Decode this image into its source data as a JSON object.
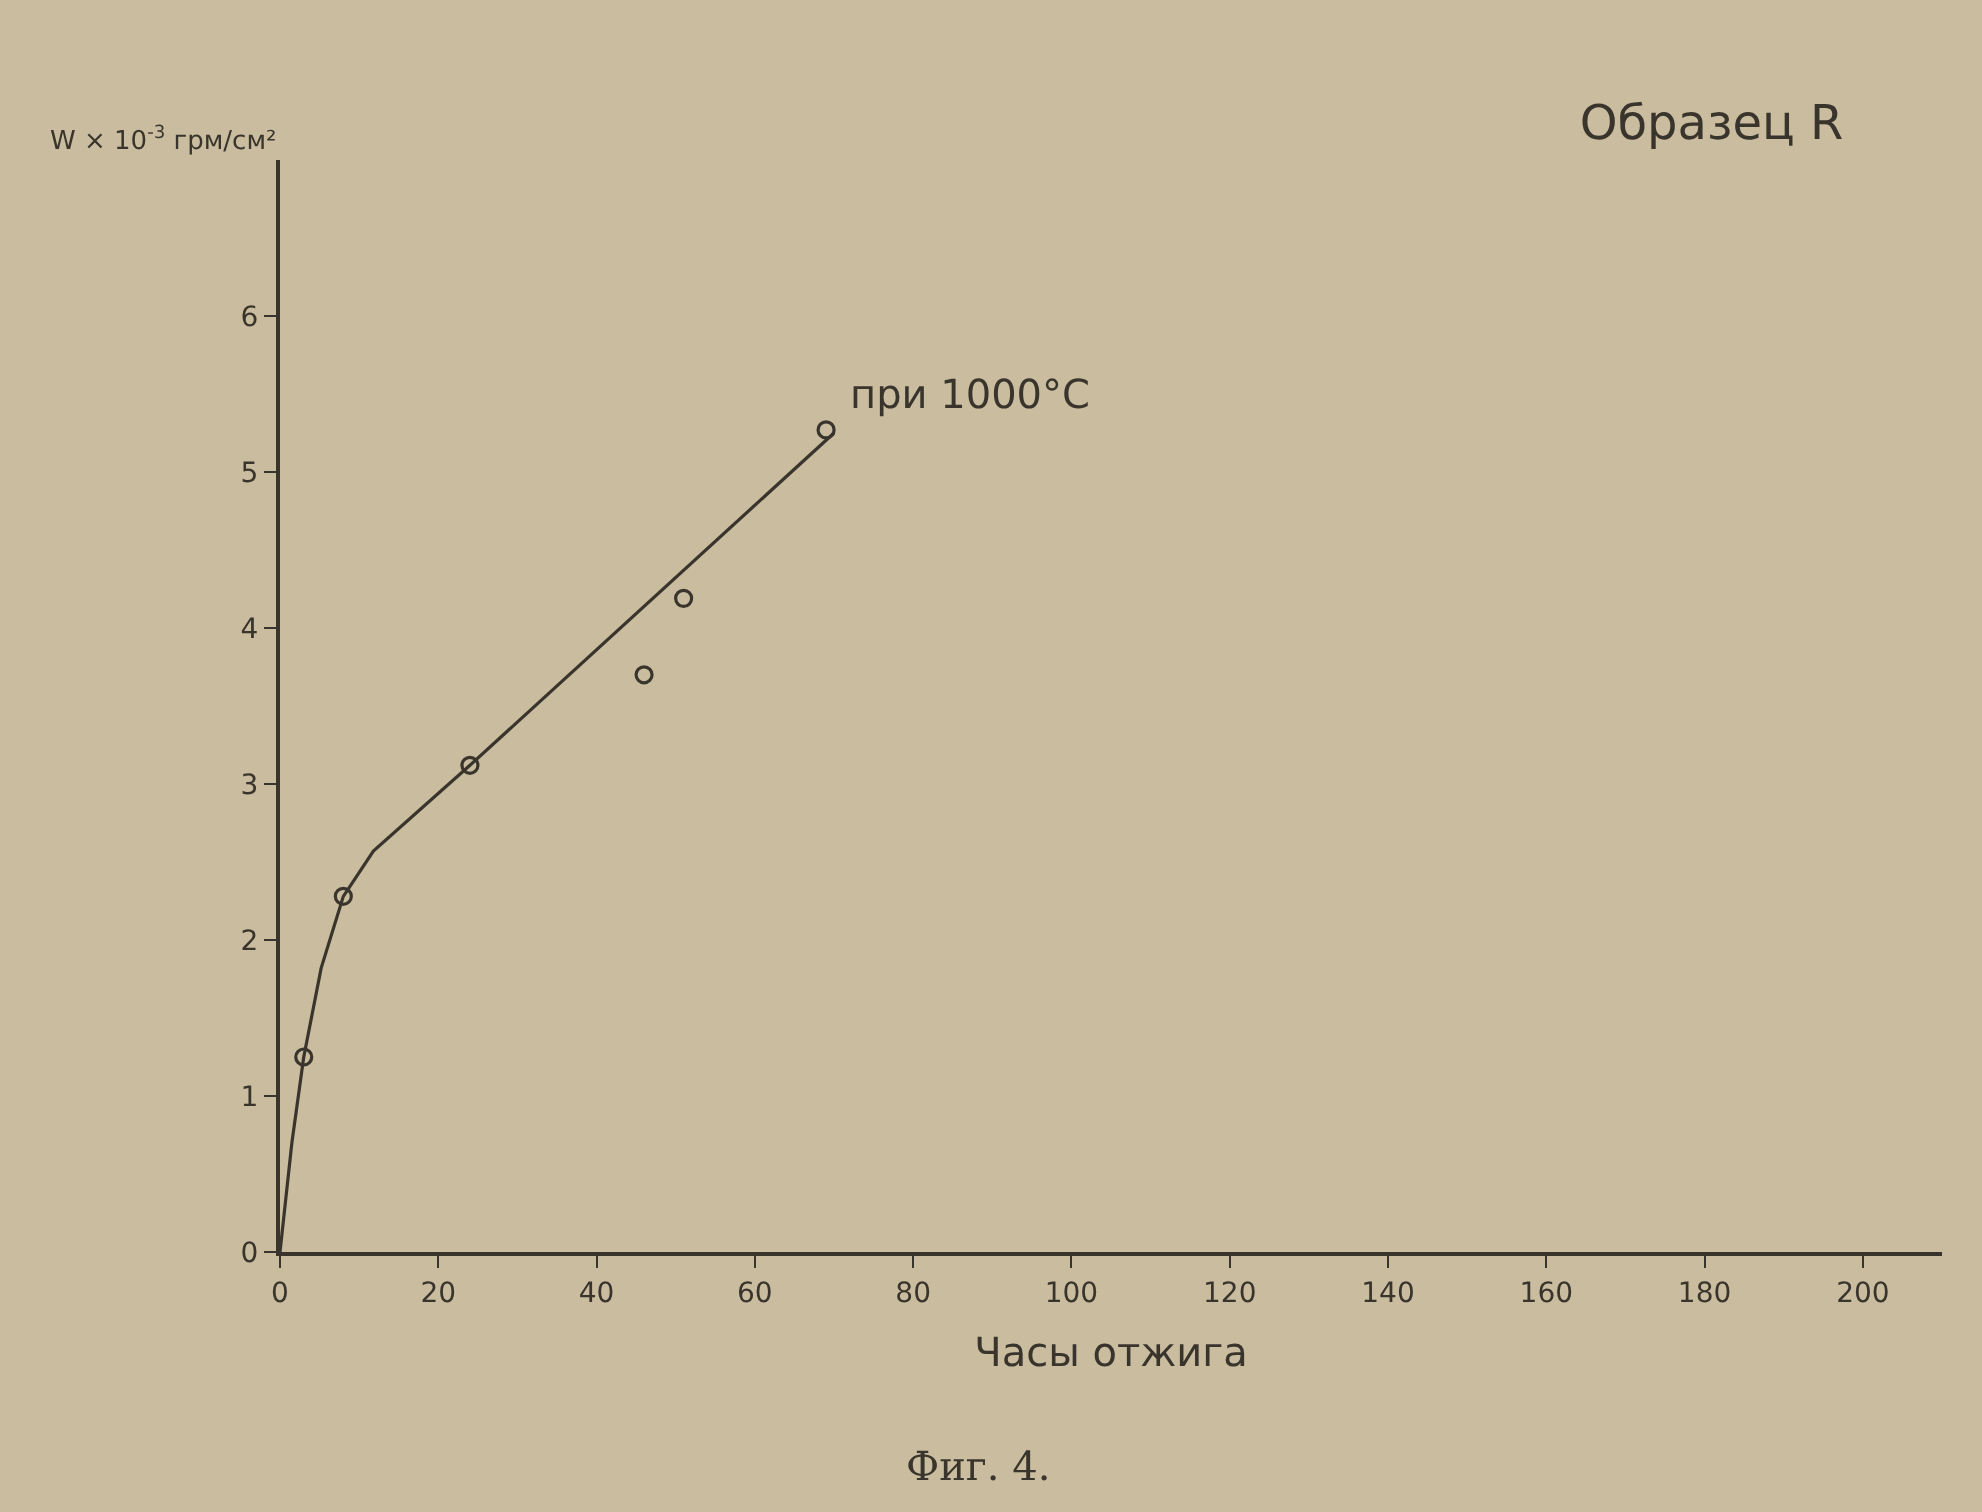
{
  "chart_data": {
    "type": "scatter",
    "title": "Образец R",
    "xlabel": "Часы отжига",
    "ylabel": "W × 10$^{-3}$ грм/см²",
    "annotations": [
      {
        "text": "при 1000°C",
        "x": 69,
        "y": 5.27
      },
      "Фиг. 4."
    ],
    "x": [
      3,
      8,
      24,
      46,
      51,
      69
    ],
    "series": [
      {
        "color": "#3a352c",
        "marker": "circle",
        "values": [
          1.25,
          2.28,
          3.12,
          3.7,
          4.19,
          5.27
        ]
      },
      {
        "type": "line",
        "color": "#3a352c",
        "marker": "none",
        "x": [
          0,
          1.5,
          3,
          5.2,
          8,
          11.8,
          24,
          70
        ],
        "values": [
          0,
          0.7,
          1.25,
          1.82,
          2.28,
          2.57,
          3.12,
          5.25
        ]
      }
    ],
    "xlim": [
      0,
      210
    ],
    "ylim": [
      0,
      7
    ],
    "xticks": [
      0,
      20,
      40,
      60,
      80,
      100,
      120,
      140,
      160,
      180,
      200
    ],
    "yticks": [
      0,
      1,
      2,
      3,
      4,
      5,
      6
    ]
  }
}
